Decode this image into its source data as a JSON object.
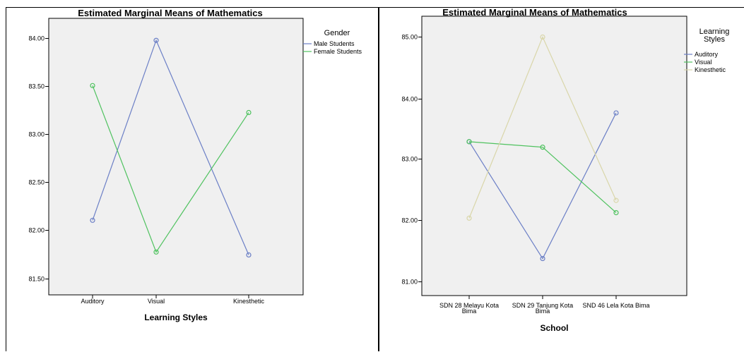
{
  "colors": {
    "blue": "#6b7fc6",
    "green": "#4fc25f",
    "beige": "#d9d6a9",
    "plot_bg": "#f0f0f0"
  },
  "chart_data": [
    {
      "type": "line",
      "title": "Estimated Marginal Means of Mathematics",
      "xlabel": "Learning Styles",
      "ylabel": "",
      "categories": [
        "Auditory",
        "Visual",
        "Kinesthetic"
      ],
      "ylim": [
        81.4,
        84.2
      ],
      "yticks": [
        "84.00",
        "83.50",
        "83.00",
        "82.50",
        "82.00",
        "81.50"
      ],
      "legend_title": "Gender",
      "legend_position": "top-right",
      "grid": false,
      "series": [
        {
          "name": "Male Students",
          "color": "#6b7fc6",
          "values": [
            82.11,
            83.98,
            81.75
          ]
        },
        {
          "name": "Female Students",
          "color": "#4fc25f",
          "values": [
            83.51,
            81.78,
            83.23
          ]
        }
      ]
    },
    {
      "type": "line",
      "title": "Estimated Marginal Means of Mathematics",
      "xlabel": "School",
      "ylabel": "",
      "categories": [
        [
          "SDN 28 Melayu Kota",
          "Bima"
        ],
        [
          "SDN 29 Tanjung Kota",
          "Bima"
        ],
        [
          "SND 46 Lela Kota Bima"
        ]
      ],
      "ylim": [
        80.8,
        85.2
      ],
      "yticks": [
        "85.00",
        "84.00",
        "83.00",
        "82.00",
        "81.00"
      ],
      "legend_title": [
        "Learning",
        "Styles"
      ],
      "legend_position": "top-right",
      "grid": false,
      "series": [
        {
          "name": "Auditory",
          "color": "#6b7fc6",
          "values": [
            83.29,
            81.38,
            83.76
          ]
        },
        {
          "name": "Visual",
          "color": "#4fc25f",
          "values": [
            83.29,
            83.2,
            82.13
          ]
        },
        {
          "name": "Kinesthetic",
          "color": "#d9d6a9",
          "values": [
            82.04,
            85.0,
            82.33
          ]
        }
      ]
    }
  ]
}
